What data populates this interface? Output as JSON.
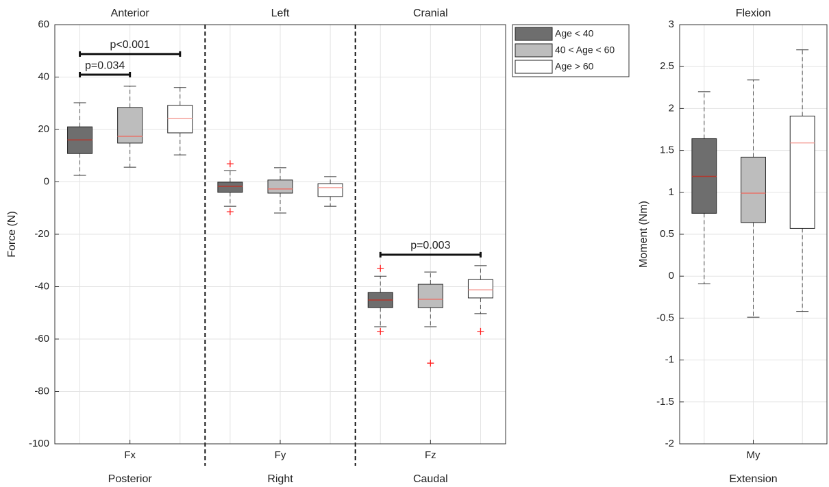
{
  "chart_data": [
    {
      "type": "box",
      "y_label": "Force (N)",
      "categories": [
        "Fx",
        "Fy",
        "Fz"
      ],
      "top_labels": [
        "Anterior",
        "Left",
        "Cranial"
      ],
      "bottom_labels": [
        "Posterior",
        "Right",
        "Caudal"
      ],
      "ylim": [
        -100,
        60
      ],
      "yticks": [
        -100,
        -80,
        -60,
        -40,
        -20,
        0,
        20,
        40,
        60
      ],
      "grid": true,
      "legend": "outside right",
      "outlier_color": "#ff2020",
      "series": [
        {
          "name": "Age < 40",
          "color": "#6e6e6e",
          "median_color": "#b5372c",
          "values": [
            {
              "whisker_low": 2.5,
              "q1": 10.8,
              "median": 16,
              "q3": 21,
              "whisker_high": 30.2,
              "outliers": []
            },
            {
              "whisker_low": -9.3,
              "q1": -4,
              "median": -1.7,
              "q3": -0.1,
              "whisker_high": 4.3,
              "outliers": [
                6.9,
                -11.4
              ]
            },
            {
              "whisker_low": -55.3,
              "q1": -48,
              "median": -45.1,
              "q3": -42.2,
              "whisker_high": -36,
              "outliers": [
                -33,
                -57.1
              ]
            }
          ]
        },
        {
          "name": "40 < Age < 60",
          "color": "#bdbdbd",
          "median_color": "#e8746b",
          "values": [
            {
              "whisker_low": 5.6,
              "q1": 14.8,
              "median": 17.4,
              "q3": 28.4,
              "whisker_high": 36.5,
              "outliers": []
            },
            {
              "whisker_low": -11.9,
              "q1": -4.3,
              "median": -2.7,
              "q3": 0.7,
              "whisker_high": 5.4,
              "outliers": []
            },
            {
              "whisker_low": -55.3,
              "q1": -48,
              "median": -44.8,
              "q3": -39.1,
              "whisker_high": -34.4,
              "outliers": [
                -69.2
              ]
            }
          ]
        },
        {
          "name": "Age > 60",
          "color": "#ffffff",
          "median_color": "#f4a09a",
          "values": [
            {
              "whisker_low": 10.3,
              "q1": 18.7,
              "median": 24.2,
              "q3": 29.2,
              "whisker_high": 36,
              "outliers": []
            },
            {
              "whisker_low": -9.3,
              "q1": -5.6,
              "median": -2.2,
              "q3": -0.7,
              "whisker_high": 2,
              "outliers": []
            },
            {
              "whisker_low": -50.3,
              "q1": -44.3,
              "median": -41.2,
              "q3": -37.3,
              "whisker_high": -32,
              "outliers": [
                -57.1
              ]
            }
          ]
        }
      ],
      "annotations": [
        {
          "text": "p<0.001",
          "y": 48.8
        },
        {
          "text": "p=0.034",
          "y": 40.9
        },
        {
          "text": "p=0.003",
          "y": -27.8
        }
      ]
    },
    {
      "type": "box",
      "y_label": "Moment (Nm)",
      "categories": [
        "My"
      ],
      "top_labels": [
        "Flexion"
      ],
      "bottom_labels": [
        "Extension"
      ],
      "ylim": [
        -2,
        3
      ],
      "yticks": [
        -2,
        -1.5,
        -1,
        -0.5,
        0,
        0.5,
        1,
        1.5,
        2,
        2.5,
        3
      ],
      "grid": true,
      "outlier_color": "#ff2020",
      "series": [
        {
          "name": "Age < 40",
          "color": "#6e6e6e",
          "median_color": "#b5372c",
          "values": [
            {
              "whisker_low": -0.09,
              "q1": 0.75,
              "median": 1.19,
              "q3": 1.64,
              "whisker_high": 2.2,
              "outliers": []
            }
          ]
        },
        {
          "name": "40 < Age < 60",
          "color": "#bdbdbd",
          "median_color": "#e8746b",
          "values": [
            {
              "whisker_low": -0.49,
              "q1": 0.64,
              "median": 0.99,
              "q3": 1.42,
              "whisker_high": 2.34,
              "outliers": []
            }
          ]
        },
        {
          "name": "Age > 60",
          "color": "#ffffff",
          "median_color": "#f4a09a",
          "values": [
            {
              "whisker_low": -0.42,
              "q1": 0.57,
              "median": 1.59,
              "q3": 1.91,
              "whisker_high": 2.7,
              "outliers": []
            }
          ]
        }
      ]
    }
  ]
}
